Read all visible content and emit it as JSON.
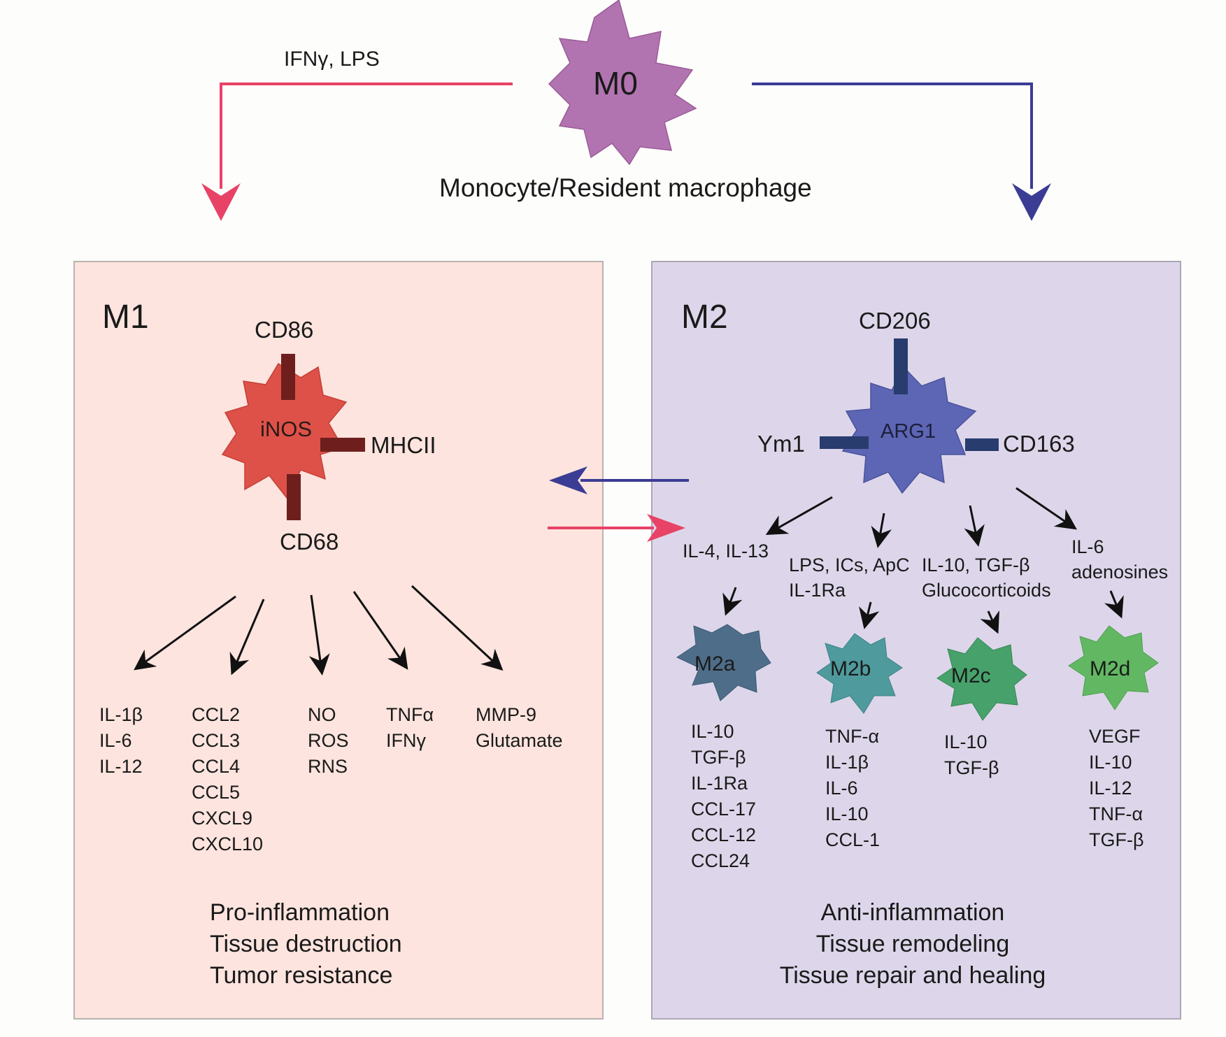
{
  "root": {
    "cell_label": "M0",
    "caption": "Monocyte/Resident macrophage",
    "stimulus_m1": "IFNγ, LPS"
  },
  "m1": {
    "title": "M1",
    "cell_label": "iNOS",
    "markers": {
      "top": "CD86",
      "right": "MHCII",
      "bottom": "CD68"
    },
    "products": [
      "IL-1β\nIL-6\nIL-12",
      "CCL2\nCCL3\nCCL4\nCCL5\nCXCL9\nCXCL10",
      "NO\nROS\nRNS",
      "TNFα\nIFNγ",
      "MMP-9\nGlutamate"
    ],
    "functions": "Pro-inflammation\nTissue destruction\nTumor resistance"
  },
  "m2": {
    "title": "M2",
    "cell_label": "ARG1",
    "markers": {
      "top": "CD206",
      "left": "Ym1",
      "right": "CD163"
    },
    "subtypes": [
      {
        "name": "M2a",
        "stimuli": "IL-4, IL-13",
        "products": "IL-10\nTGF-β\nIL-1Ra\nCCL-17\nCCL-12\nCCL24"
      },
      {
        "name": "M2b",
        "stimuli": "LPS, ICs, ApC\nIL-1Ra",
        "products": "TNF-α\nIL-1β\nIL-6\nIL-10\nCCL-1"
      },
      {
        "name": "M2c",
        "stimuli": "IL-10, TGF-β\nGlucocorticoids",
        "products": "IL-10\nTGF-β"
      },
      {
        "name": "M2d",
        "stimuli": "IL-6\nadenosines",
        "products": "VEGF\nIL-10\nIL-12\nTNF-α\nTGF-β"
      }
    ],
    "functions": "Anti-inflammation\nTissue remodeling\nTissue repair and healing"
  },
  "colors": {
    "m1_panel": "#fde4de",
    "m2_panel": "#ddd6ea",
    "m0_cell": "#b274b0",
    "m1_cell": "#de5148",
    "m2_cell": "#5d66b4",
    "m1_marker": "#6e1f1d",
    "m2_marker": "#283c6e",
    "m1_arrow": "#e84266",
    "m2_arrow": "#3b3c94",
    "m2a": "#4e6d89",
    "m2b": "#4f9a9d",
    "m2c": "#46a26a",
    "m2d": "#62b862"
  }
}
